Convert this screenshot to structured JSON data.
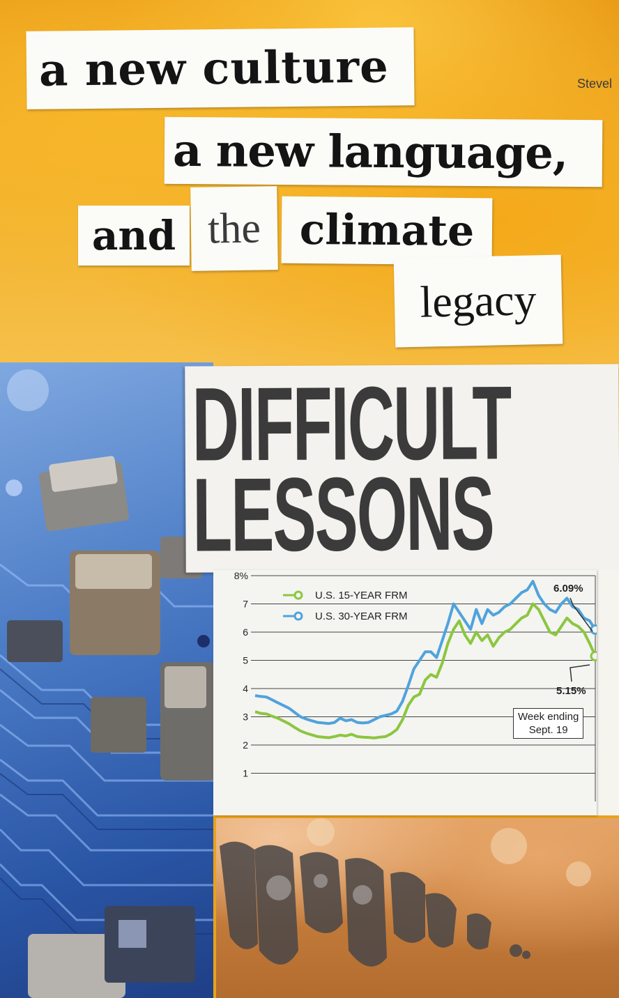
{
  "collage": {
    "strips": {
      "culture": "a new culture",
      "language": "a new language,",
      "and": "and",
      "the": "the",
      "climate": "climate",
      "legacy": "legacy",
      "fragment": "Stevel"
    },
    "headline": {
      "line1": "DIFFICULT",
      "line2": "LESSONS"
    },
    "chart_callouts": {
      "label_high": "6.09%",
      "label_low": "5.15%",
      "week_ending_line1": "Week ending",
      "week_ending_line2": "Sept. 19"
    },
    "colors": {
      "orange_paper": "#f2b12c",
      "series_15yr": "#8cc63f",
      "series_30yr": "#4fa3dc",
      "headline_ink": "#3b3b3b"
    }
  },
  "chart_data": {
    "type": "line",
    "title": "",
    "xlabel": "",
    "ylabel": "",
    "ylim": [
      0,
      8
    ],
    "y_ticks": [
      "1",
      "2",
      "3",
      "4",
      "5",
      "6",
      "7",
      "8%"
    ],
    "grid": true,
    "legend_position": "top-left",
    "x": [
      0,
      1,
      2,
      3,
      4,
      5,
      6,
      7,
      8,
      9,
      10,
      11,
      12,
      13,
      14,
      15,
      16,
      17,
      18,
      19,
      20,
      21,
      22,
      23,
      24,
      25,
      26,
      27,
      28,
      29,
      30,
      31,
      32,
      33,
      34,
      35,
      36,
      37,
      38,
      39,
      40,
      41,
      42,
      43,
      44,
      45,
      46,
      47,
      48,
      49,
      50,
      51,
      52,
      53,
      54,
      55,
      56,
      57,
      58,
      59,
      60
    ],
    "series": [
      {
        "name": "U.S. 15-YEAR FRM",
        "values": [
          3.18,
          3.12,
          3.1,
          3.02,
          2.95,
          2.85,
          2.75,
          2.62,
          2.5,
          2.42,
          2.36,
          2.3,
          2.28,
          2.26,
          2.3,
          2.35,
          2.32,
          2.38,
          2.3,
          2.28,
          2.27,
          2.25,
          2.28,
          2.3,
          2.4,
          2.55,
          2.9,
          3.4,
          3.7,
          3.8,
          4.3,
          4.5,
          4.4,
          4.9,
          5.6,
          6.1,
          6.4,
          5.9,
          5.6,
          6.0,
          5.7,
          5.9,
          5.5,
          5.8,
          6.0,
          6.1,
          6.3,
          6.5,
          6.6,
          7.0,
          6.8,
          6.4,
          6.0,
          5.9,
          6.2,
          6.5,
          6.3,
          6.2,
          6.0,
          5.6,
          5.15
        ]
      },
      {
        "name": "U.S. 30-YEAR FRM",
        "values": [
          3.75,
          3.72,
          3.7,
          3.6,
          3.5,
          3.4,
          3.3,
          3.15,
          3.0,
          2.92,
          2.86,
          2.8,
          2.78,
          2.76,
          2.8,
          2.95,
          2.86,
          2.9,
          2.8,
          2.78,
          2.8,
          2.9,
          3.0,
          3.05,
          3.1,
          3.2,
          3.55,
          4.1,
          4.7,
          5.0,
          5.3,
          5.3,
          5.1,
          5.7,
          6.3,
          7.0,
          6.7,
          6.4,
          6.1,
          6.8,
          6.3,
          6.8,
          6.6,
          6.7,
          6.9,
          7.0,
          7.2,
          7.4,
          7.5,
          7.8,
          7.3,
          7.0,
          6.8,
          6.7,
          7.0,
          7.2,
          6.9,
          6.8,
          6.5,
          6.4,
          6.09
        ]
      }
    ]
  }
}
